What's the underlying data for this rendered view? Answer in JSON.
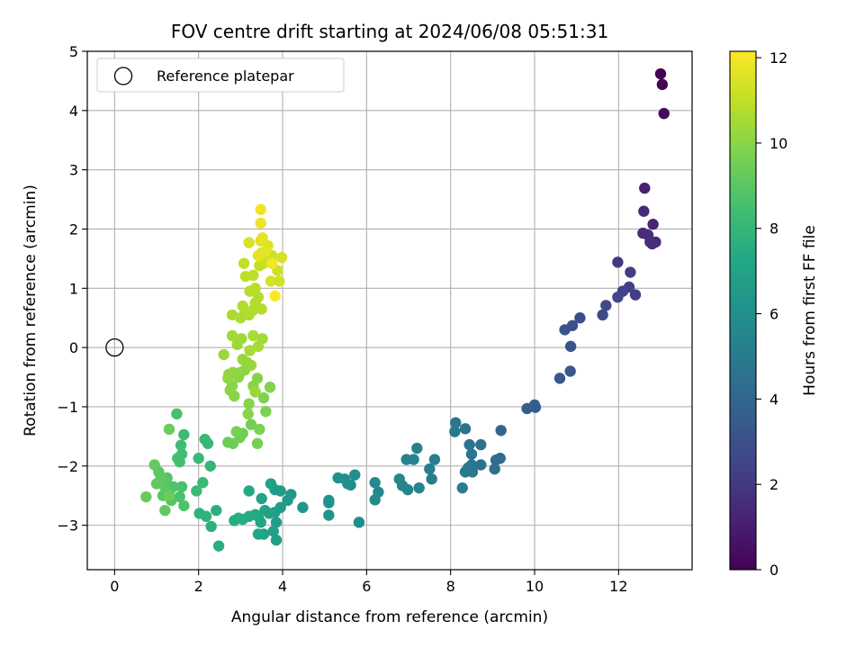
{
  "chart_data": {
    "type": "scatter",
    "title": "FOV centre drift starting at 2024/06/08 05:51:31",
    "xlabel": "Angular distance from reference (arcmin)",
    "ylabel": "Rotation from reference (arcmin)",
    "xlim": [
      -0.65,
      13.75
    ],
    "ylim": [
      -3.75,
      5.0
    ],
    "xticks": [
      0,
      2,
      4,
      6,
      8,
      10,
      12
    ],
    "yticks": [
      -3,
      -2,
      -1,
      0,
      1,
      2,
      3,
      4,
      5
    ],
    "xtick_labels": [
      "0",
      "2",
      "4",
      "6",
      "8",
      "10",
      "12"
    ],
    "ytick_labels": [
      "−3",
      "−2",
      "−1",
      "0",
      "1",
      "2",
      "3",
      "4",
      "5"
    ],
    "grid": true,
    "legend": {
      "position": "top-left",
      "entries": [
        "Reference platepar"
      ]
    },
    "reference_point": {
      "x": 0,
      "y": 0
    },
    "colorbar": {
      "label": "Hours from first FF file",
      "colormap": "viridis",
      "range": [
        0,
        12.15
      ],
      "ticks": [
        0,
        2,
        4,
        6,
        8,
        10,
        12
      ],
      "tick_labels": [
        "0",
        "2",
        "4",
        "6",
        "8",
        "10",
        "12"
      ]
    },
    "points": [
      {
        "x": 13.0,
        "y": 4.62,
        "c": 0.05
      },
      {
        "x": 13.04,
        "y": 4.44,
        "c": 0.15
      },
      {
        "x": 13.08,
        "y": 3.95,
        "c": 0.3
      },
      {
        "x": 12.62,
        "y": 2.69,
        "c": 1.1
      },
      {
        "x": 12.6,
        "y": 2.3,
        "c": 1.4
      },
      {
        "x": 12.82,
        "y": 2.08,
        "c": 1.3
      },
      {
        "x": 12.58,
        "y": 1.93,
        "c": 1.5
      },
      {
        "x": 12.7,
        "y": 1.9,
        "c": 1.6
      },
      {
        "x": 12.75,
        "y": 1.78,
        "c": 1.55
      },
      {
        "x": 12.88,
        "y": 1.78,
        "c": 1.45
      },
      {
        "x": 12.8,
        "y": 1.75,
        "c": 1.65
      },
      {
        "x": 11.98,
        "y": 1.44,
        "c": 2.1
      },
      {
        "x": 12.28,
        "y": 1.27,
        "c": 2.2
      },
      {
        "x": 12.25,
        "y": 1.02,
        "c": 2.3
      },
      {
        "x": 12.1,
        "y": 0.95,
        "c": 2.4
      },
      {
        "x": 12.4,
        "y": 0.89,
        "c": 2.2
      },
      {
        "x": 11.98,
        "y": 0.85,
        "c": 2.5
      },
      {
        "x": 11.7,
        "y": 0.71,
        "c": 2.6
      },
      {
        "x": 11.62,
        "y": 0.55,
        "c": 2.7
      },
      {
        "x": 11.08,
        "y": 0.5,
        "c": 2.9
      },
      {
        "x": 10.9,
        "y": 0.37,
        "c": 3.0
      },
      {
        "x": 10.72,
        "y": 0.3,
        "c": 3.1
      },
      {
        "x": 10.86,
        "y": 0.02,
        "c": 3.2
      },
      {
        "x": 10.85,
        "y": -0.4,
        "c": 3.3
      },
      {
        "x": 10.6,
        "y": -0.52,
        "c": 3.35
      },
      {
        "x": 10.0,
        "y": -0.97,
        "c": 3.5
      },
      {
        "x": 10.02,
        "y": -1.01,
        "c": 3.55
      },
      {
        "x": 9.82,
        "y": -1.03,
        "c": 3.6
      },
      {
        "x": 9.2,
        "y": -1.4,
        "c": 4.0
      },
      {
        "x": 9.18,
        "y": -1.87,
        "c": 4.2
      },
      {
        "x": 9.08,
        "y": -1.9,
        "c": 4.3
      },
      {
        "x": 9.05,
        "y": -2.05,
        "c": 4.4
      },
      {
        "x": 8.72,
        "y": -1.64,
        "c": 4.5
      },
      {
        "x": 8.72,
        "y": -1.98,
        "c": 4.5
      },
      {
        "x": 8.45,
        "y": -1.64,
        "c": 4.6
      },
      {
        "x": 8.5,
        "y": -1.8,
        "c": 4.7
      },
      {
        "x": 8.5,
        "y": -1.98,
        "c": 4.75
      },
      {
        "x": 8.52,
        "y": -2.1,
        "c": 4.8
      },
      {
        "x": 8.35,
        "y": -2.1,
        "c": 4.85
      },
      {
        "x": 8.42,
        "y": -2.03,
        "c": 4.9
      },
      {
        "x": 8.28,
        "y": -2.37,
        "c": 5.0
      },
      {
        "x": 8.35,
        "y": -1.37,
        "c": 4.6
      },
      {
        "x": 8.12,
        "y": -1.27,
        "c": 4.7
      },
      {
        "x": 8.1,
        "y": -1.42,
        "c": 4.8
      },
      {
        "x": 7.62,
        "y": -1.89,
        "c": 5.1
      },
      {
        "x": 7.55,
        "y": -2.22,
        "c": 5.2
      },
      {
        "x": 7.5,
        "y": -2.05,
        "c": 5.25
      },
      {
        "x": 7.2,
        "y": -1.7,
        "c": 5.3
      },
      {
        "x": 7.12,
        "y": -1.89,
        "c": 5.35
      },
      {
        "x": 6.95,
        "y": -1.89,
        "c": 5.4
      },
      {
        "x": 7.25,
        "y": -2.37,
        "c": 5.45
      },
      {
        "x": 6.98,
        "y": -2.4,
        "c": 5.5
      },
      {
        "x": 6.85,
        "y": -2.33,
        "c": 5.55
      },
      {
        "x": 6.78,
        "y": -2.22,
        "c": 5.6
      },
      {
        "x": 6.28,
        "y": -2.44,
        "c": 5.7
      },
      {
        "x": 6.2,
        "y": -2.28,
        "c": 5.75
      },
      {
        "x": 6.2,
        "y": -2.57,
        "c": 5.8
      },
      {
        "x": 5.82,
        "y": -2.95,
        "c": 5.85
      },
      {
        "x": 5.72,
        "y": -2.15,
        "c": 5.9
      },
      {
        "x": 5.62,
        "y": -2.32,
        "c": 5.95
      },
      {
        "x": 5.55,
        "y": -2.3,
        "c": 6.0
      },
      {
        "x": 5.48,
        "y": -2.22,
        "c": 6.05
      },
      {
        "x": 5.32,
        "y": -2.2,
        "c": 6.1
      },
      {
        "x": 5.1,
        "y": -2.58,
        "c": 6.15
      },
      {
        "x": 5.1,
        "y": -2.62,
        "c": 6.2
      },
      {
        "x": 5.1,
        "y": -2.83,
        "c": 6.25
      },
      {
        "x": 4.48,
        "y": -2.7,
        "c": 6.4
      },
      {
        "x": 4.2,
        "y": -2.48,
        "c": 6.45
      },
      {
        "x": 4.12,
        "y": -2.58,
        "c": 6.5
      },
      {
        "x": 3.95,
        "y": -2.42,
        "c": 6.55
      },
      {
        "x": 3.95,
        "y": -2.7,
        "c": 6.6
      },
      {
        "x": 3.82,
        "y": -2.4,
        "c": 6.65
      },
      {
        "x": 3.82,
        "y": -2.78,
        "c": 6.7
      },
      {
        "x": 3.85,
        "y": -2.95,
        "c": 6.75
      },
      {
        "x": 3.78,
        "y": -3.1,
        "c": 6.8
      },
      {
        "x": 3.85,
        "y": -3.25,
        "c": 6.85
      },
      {
        "x": 3.72,
        "y": -2.3,
        "c": 6.9
      },
      {
        "x": 3.68,
        "y": -2.8,
        "c": 6.95
      },
      {
        "x": 3.58,
        "y": -2.75,
        "c": 7.0
      },
      {
        "x": 3.55,
        "y": -3.15,
        "c": 7.05
      },
      {
        "x": 3.5,
        "y": -2.55,
        "c": 7.1
      },
      {
        "x": 3.48,
        "y": -2.95,
        "c": 7.15
      },
      {
        "x": 3.42,
        "y": -2.85,
        "c": 7.2
      },
      {
        "x": 3.42,
        "y": -3.15,
        "c": 7.25
      },
      {
        "x": 3.35,
        "y": -2.82,
        "c": 7.3
      },
      {
        "x": 3.2,
        "y": -2.42,
        "c": 7.35
      },
      {
        "x": 3.2,
        "y": -2.85,
        "c": 7.4
      },
      {
        "x": 3.05,
        "y": -2.9,
        "c": 7.45
      },
      {
        "x": 2.95,
        "y": -2.88,
        "c": 7.5
      },
      {
        "x": 2.85,
        "y": -2.92,
        "c": 7.55
      },
      {
        "x": 2.48,
        "y": -3.35,
        "c": 7.6
      },
      {
        "x": 2.42,
        "y": -2.75,
        "c": 7.65
      },
      {
        "x": 2.3,
        "y": -3.02,
        "c": 7.7
      },
      {
        "x": 2.18,
        "y": -2.85,
        "c": 7.75
      },
      {
        "x": 2.02,
        "y": -2.8,
        "c": 7.8
      },
      {
        "x": 2.28,
        "y": -2.0,
        "c": 8.0
      },
      {
        "x": 2.22,
        "y": -1.62,
        "c": 8.05
      },
      {
        "x": 2.15,
        "y": -1.55,
        "c": 8.1
      },
      {
        "x": 2.1,
        "y": -2.28,
        "c": 8.15
      },
      {
        "x": 2.0,
        "y": -1.87,
        "c": 8.2
      },
      {
        "x": 1.95,
        "y": -2.42,
        "c": 8.25
      },
      {
        "x": 1.65,
        "y": -1.47,
        "c": 8.3
      },
      {
        "x": 1.58,
        "y": -1.65,
        "c": 8.35
      },
      {
        "x": 1.6,
        "y": -1.8,
        "c": 8.4
      },
      {
        "x": 1.55,
        "y": -1.93,
        "c": 8.45
      },
      {
        "x": 1.5,
        "y": -1.87,
        "c": 8.5
      },
      {
        "x": 1.48,
        "y": -1.12,
        "c": 8.55
      },
      {
        "x": 1.6,
        "y": -2.35,
        "c": 8.6
      },
      {
        "x": 1.55,
        "y": -2.52,
        "c": 8.65
      },
      {
        "x": 1.65,
        "y": -2.67,
        "c": 8.7
      },
      {
        "x": 1.4,
        "y": -2.35,
        "c": 8.75
      },
      {
        "x": 1.35,
        "y": -2.58,
        "c": 8.8
      },
      {
        "x": 1.3,
        "y": -2.45,
        "c": 8.85
      },
      {
        "x": 1.25,
        "y": -2.2,
        "c": 8.9
      },
      {
        "x": 1.2,
        "y": -2.35,
        "c": 8.95
      },
      {
        "x": 1.15,
        "y": -2.5,
        "c": 9.0
      },
      {
        "x": 1.05,
        "y": -2.1,
        "c": 9.05
      },
      {
        "x": 1.1,
        "y": -2.2,
        "c": 9.1
      },
      {
        "x": 1.2,
        "y": -2.75,
        "c": 9.15
      },
      {
        "x": 1.0,
        "y": -2.3,
        "c": 9.2
      },
      {
        "x": 0.95,
        "y": -1.98,
        "c": 9.25
      },
      {
        "x": 0.75,
        "y": -2.52,
        "c": 9.3
      },
      {
        "x": 1.3,
        "y": -1.38,
        "c": 9.35
      },
      {
        "x": 1.3,
        "y": -2.5,
        "c": 9.4
      },
      {
        "x": 2.7,
        "y": -1.6,
        "c": 9.4
      },
      {
        "x": 2.82,
        "y": -1.62,
        "c": 9.45
      },
      {
        "x": 2.98,
        "y": -1.52,
        "c": 9.5
      },
      {
        "x": 3.05,
        "y": -1.45,
        "c": 9.5
      },
      {
        "x": 3.25,
        "y": -1.3,
        "c": 9.55
      },
      {
        "x": 3.4,
        "y": -1.62,
        "c": 9.6
      },
      {
        "x": 2.9,
        "y": -1.42,
        "c": 9.65
      },
      {
        "x": 3.45,
        "y": -1.38,
        "c": 9.7
      },
      {
        "x": 3.6,
        "y": -1.08,
        "c": 9.75
      },
      {
        "x": 3.55,
        "y": -0.85,
        "c": 9.8
      },
      {
        "x": 3.7,
        "y": -0.67,
        "c": 9.85
      },
      {
        "x": 3.4,
        "y": -0.52,
        "c": 9.9
      },
      {
        "x": 3.3,
        "y": -0.65,
        "c": 9.95
      },
      {
        "x": 3.2,
        "y": -0.95,
        "c": 9.98
      },
      {
        "x": 3.18,
        "y": -1.12,
        "c": 10.0
      },
      {
        "x": 2.85,
        "y": -0.82,
        "c": 9.95
      },
      {
        "x": 2.8,
        "y": -0.65,
        "c": 10.0
      },
      {
        "x": 2.75,
        "y": -0.72,
        "c": 10.02
      },
      {
        "x": 2.95,
        "y": -0.5,
        "c": 10.05
      },
      {
        "x": 3.0,
        "y": -0.42,
        "c": 10.08
      },
      {
        "x": 3.1,
        "y": -0.38,
        "c": 10.1
      },
      {
        "x": 2.82,
        "y": -0.42,
        "c": 10.1
      },
      {
        "x": 2.7,
        "y": -0.52,
        "c": 10.12
      },
      {
        "x": 2.72,
        "y": -0.45,
        "c": 10.15
      },
      {
        "x": 3.15,
        "y": -0.25,
        "c": 10.2
      },
      {
        "x": 3.25,
        "y": -0.3,
        "c": 10.22
      },
      {
        "x": 3.05,
        "y": -0.2,
        "c": 10.25
      },
      {
        "x": 3.35,
        "y": -0.75,
        "c": 10.28
      },
      {
        "x": 2.6,
        "y": -0.12,
        "c": 10.3
      },
      {
        "x": 2.92,
        "y": 0.05,
        "c": 10.35
      },
      {
        "x": 3.02,
        "y": 0.15,
        "c": 10.4
      },
      {
        "x": 2.8,
        "y": 0.2,
        "c": 10.45
      },
      {
        "x": 3.52,
        "y": 0.15,
        "c": 10.5
      },
      {
        "x": 3.42,
        "y": 0.02,
        "c": 10.52
      },
      {
        "x": 3.22,
        "y": -0.05,
        "c": 10.55
      },
      {
        "x": 3.3,
        "y": 0.2,
        "c": 10.58
      },
      {
        "x": 2.8,
        "y": 0.55,
        "c": 10.6
      },
      {
        "x": 3.0,
        "y": 0.5,
        "c": 10.62
      },
      {
        "x": 3.1,
        "y": 0.58,
        "c": 10.65
      },
      {
        "x": 3.2,
        "y": 0.55,
        "c": 10.68
      },
      {
        "x": 3.05,
        "y": 0.7,
        "c": 10.7
      },
      {
        "x": 3.28,
        "y": 0.62,
        "c": 10.72
      },
      {
        "x": 3.35,
        "y": 0.75,
        "c": 10.75
      },
      {
        "x": 3.42,
        "y": 0.85,
        "c": 10.78
      },
      {
        "x": 3.5,
        "y": 0.65,
        "c": 10.8
      },
      {
        "x": 3.22,
        "y": 0.95,
        "c": 10.82
      },
      {
        "x": 3.35,
        "y": 1.0,
        "c": 10.85
      },
      {
        "x": 3.12,
        "y": 1.2,
        "c": 10.9
      },
      {
        "x": 3.3,
        "y": 1.22,
        "c": 10.95
      },
      {
        "x": 3.08,
        "y": 1.42,
        "c": 11.0
      },
      {
        "x": 3.45,
        "y": 1.38,
        "c": 11.05
      },
      {
        "x": 3.55,
        "y": 1.42,
        "c": 11.1
      },
      {
        "x": 3.65,
        "y": 1.48,
        "c": 11.15
      },
      {
        "x": 3.75,
        "y": 1.55,
        "c": 11.2
      },
      {
        "x": 3.88,
        "y": 1.3,
        "c": 11.25
      },
      {
        "x": 3.92,
        "y": 1.12,
        "c": 11.3
      },
      {
        "x": 3.72,
        "y": 1.12,
        "c": 11.35
      },
      {
        "x": 3.98,
        "y": 1.52,
        "c": 11.4
      },
      {
        "x": 3.2,
        "y": 1.77,
        "c": 11.45
      },
      {
        "x": 3.5,
        "y": 1.6,
        "c": 11.5
      },
      {
        "x": 3.48,
        "y": 1.8,
        "c": 11.55
      },
      {
        "x": 3.65,
        "y": 1.72,
        "c": 11.6
      },
      {
        "x": 3.6,
        "y": 1.62,
        "c": 11.65
      },
      {
        "x": 3.52,
        "y": 1.85,
        "c": 11.7
      },
      {
        "x": 3.42,
        "y": 1.55,
        "c": 11.75
      },
      {
        "x": 3.48,
        "y": 2.1,
        "c": 11.8
      },
      {
        "x": 3.48,
        "y": 2.33,
        "c": 11.9
      },
      {
        "x": 3.75,
        "y": 1.42,
        "c": 11.95
      },
      {
        "x": 3.82,
        "y": 0.87,
        "c": 12.1
      }
    ]
  }
}
